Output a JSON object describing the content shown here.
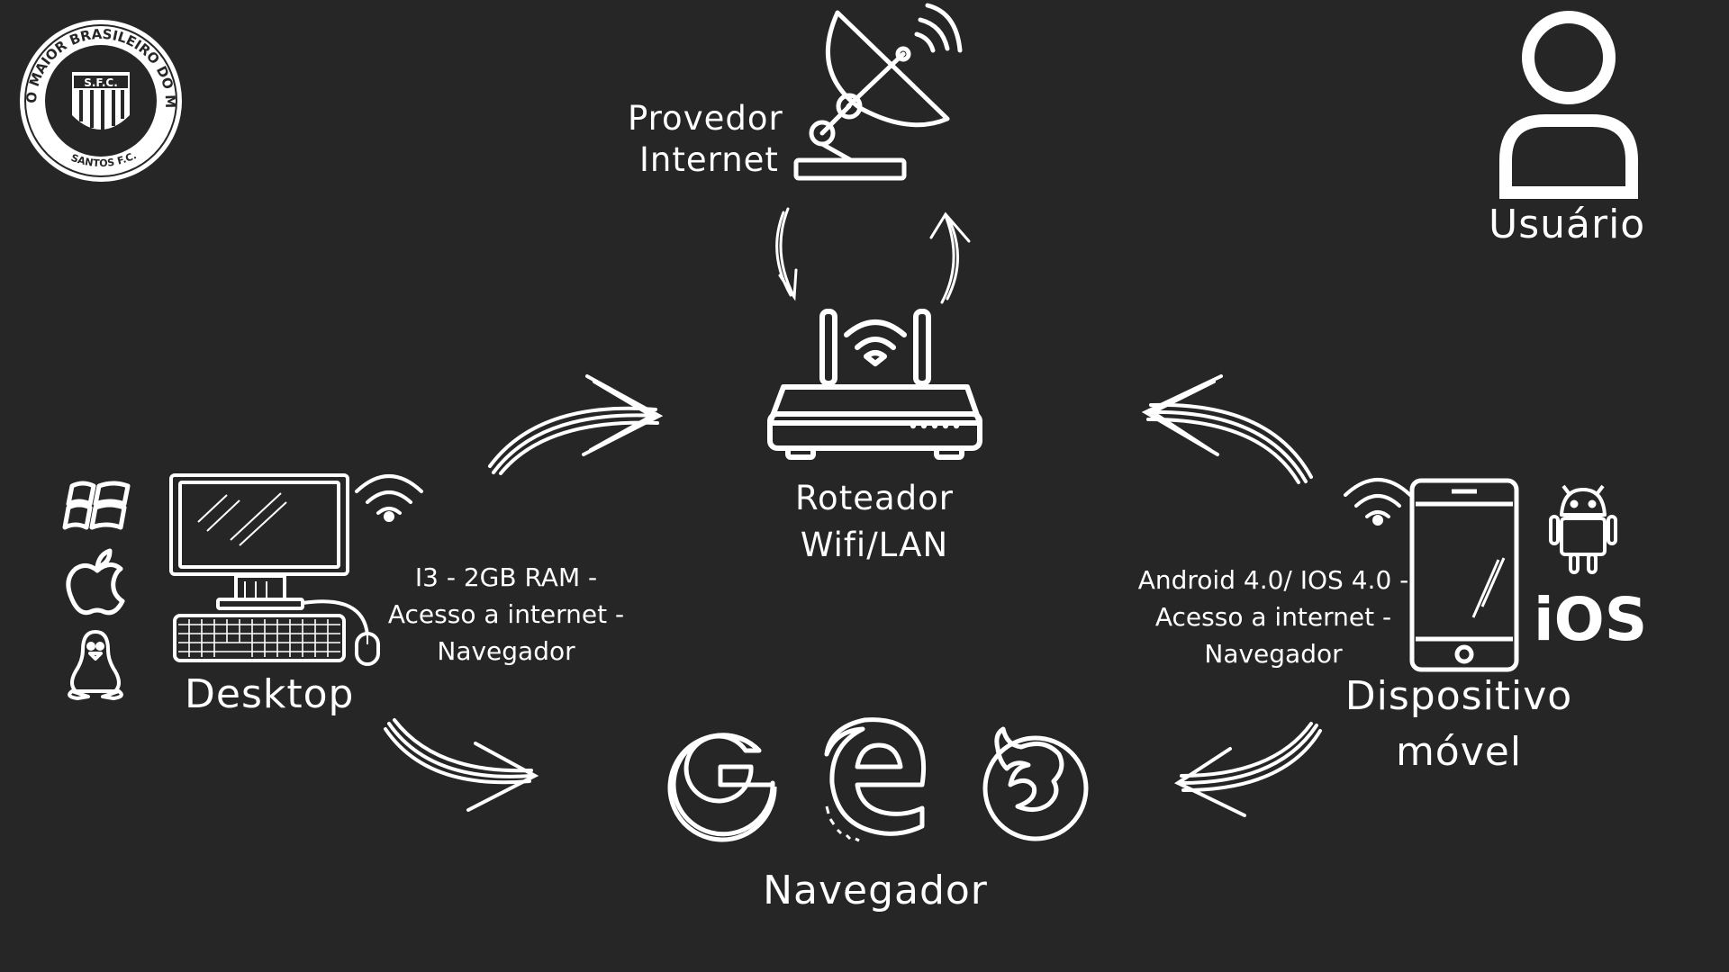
{
  "logo": {
    "ring_text": "O MAIOR BRASILEIRO DO MUNDO",
    "bottom_text": "SANTOS F.C.",
    "crest_text": "S.F.C."
  },
  "provider": {
    "line1": "Provedor",
    "line2": "Internet"
  },
  "user": {
    "label": "Usuário"
  },
  "router": {
    "line1": "Roteador",
    "line2": "Wifi/LAN"
  },
  "desktop": {
    "label": "Desktop",
    "specs": [
      "I3 - 2GB RAM -",
      "Acesso a internet -",
      "Navegador"
    ]
  },
  "mobile": {
    "line1": "Dispositivo",
    "line2": "móvel",
    "specs": [
      "Android 4.0/ IOS 4.0 -",
      "Acesso a internet -",
      "Navegador"
    ],
    "ios_label": "iOS"
  },
  "browser": {
    "label": "Navegador"
  },
  "colors": {
    "background": "#262626",
    "foreground": "#ffffff"
  },
  "icons": [
    "santos-fc-logo",
    "satellite-dish-icon",
    "user-icon",
    "router-icon",
    "desktop-computer-icon",
    "windows-icon",
    "apple-icon",
    "linux-tux-icon",
    "wifi-icon",
    "smartphone-icon",
    "android-icon",
    "google-icon",
    "edge-icon",
    "firefox-icon",
    "arrow-icon"
  ]
}
